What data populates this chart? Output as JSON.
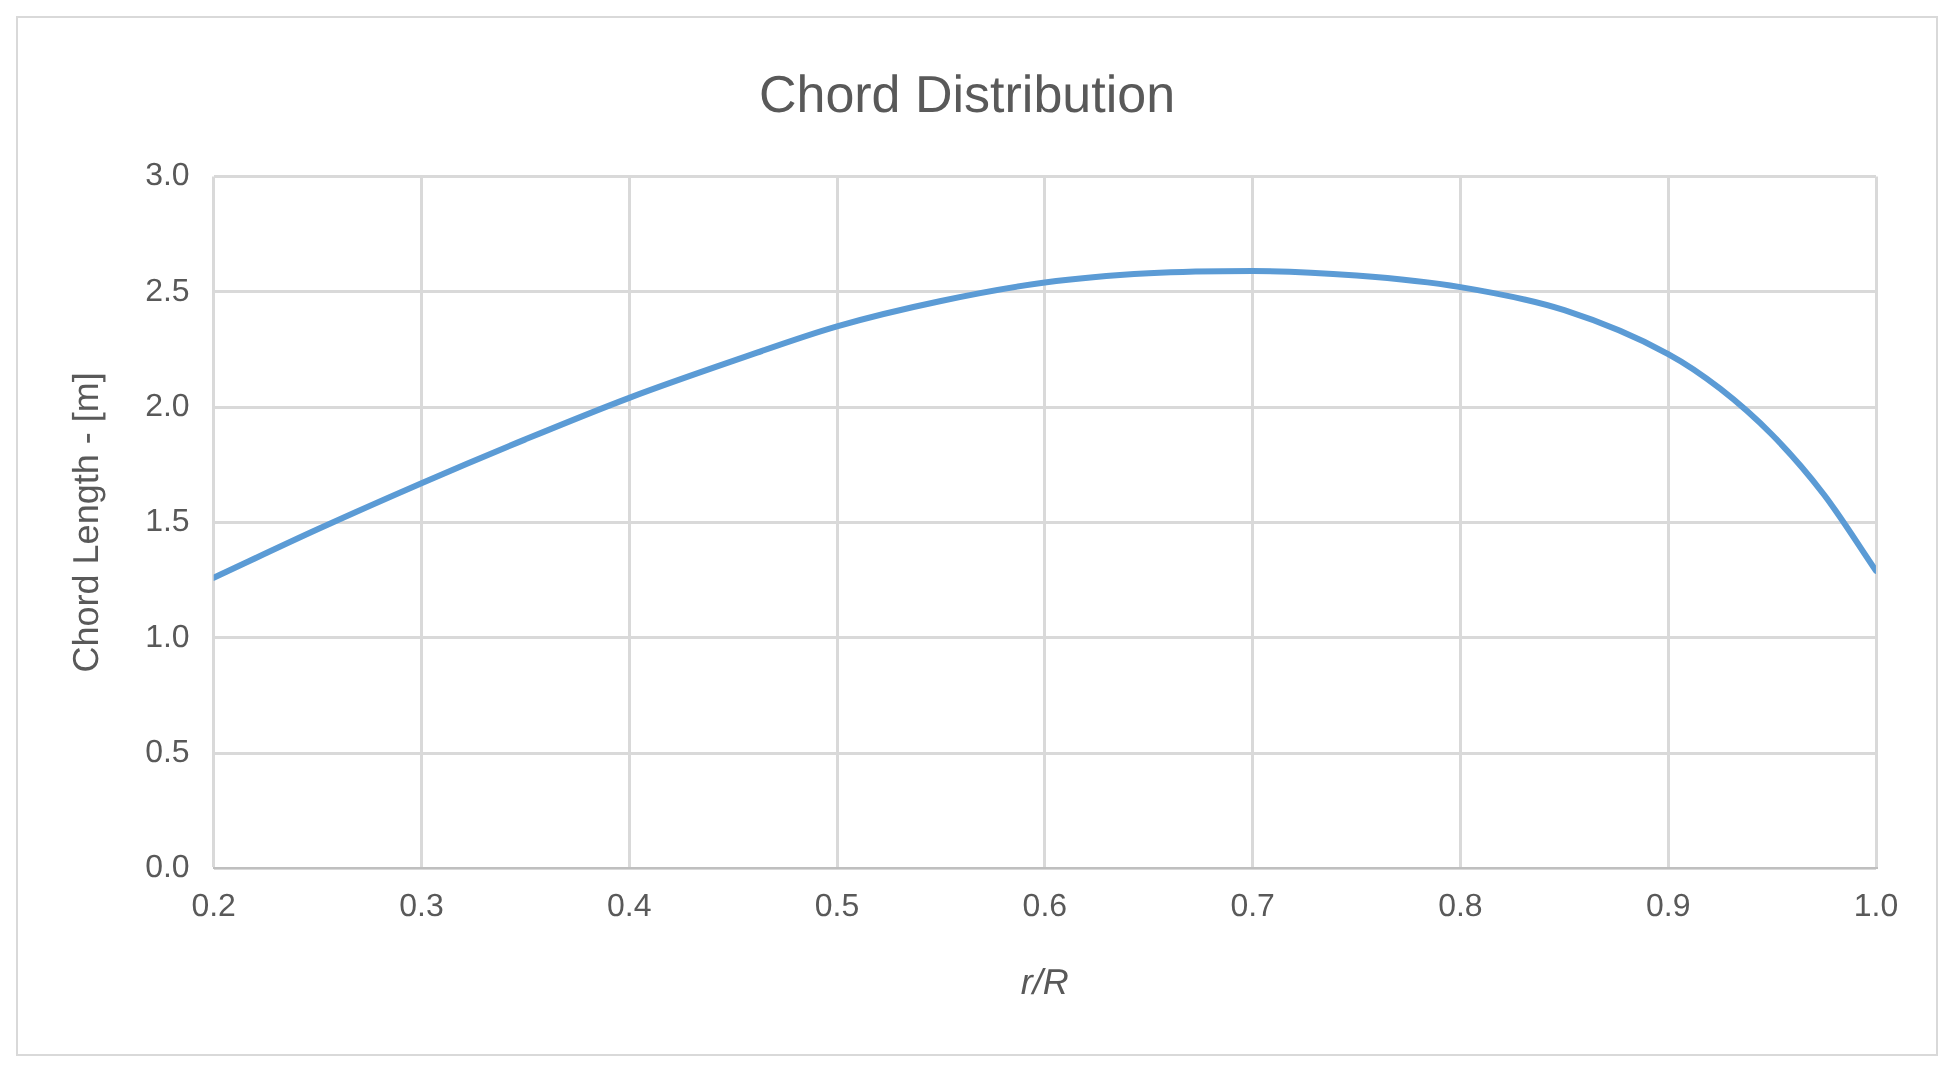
{
  "chart_data": {
    "type": "line",
    "title": "Chord Distribution",
    "xlabel": "r/R",
    "ylabel": "Chord Length - [m]",
    "x": [
      0.2,
      0.25,
      0.3,
      0.35,
      0.4,
      0.45,
      0.5,
      0.55,
      0.6,
      0.65,
      0.7,
      0.75,
      0.8,
      0.85,
      0.9,
      0.925,
      0.95,
      0.975,
      1.0
    ],
    "series": [
      {
        "color": "#5b9bd5",
        "values": [
          1.26,
          1.47,
          1.67,
          1.86,
          2.04,
          2.2,
          2.35,
          2.46,
          2.54,
          2.58,
          2.59,
          2.57,
          2.52,
          2.42,
          2.23,
          2.08,
          1.88,
          1.62,
          1.29
        ]
      }
    ],
    "xlim": [
      0.2,
      1.0
    ],
    "xticks": [
      0.2,
      0.3,
      0.4,
      0.5,
      0.6,
      0.7,
      0.8,
      0.9,
      {
        "value": 1,
        "label": "1.0"
      }
    ],
    "ylim": [
      0,
      3
    ],
    "yticks": [
      {
        "value": 0,
        "label": "0.0"
      },
      0.5,
      {
        "value": 1,
        "label": "1.0"
      },
      1.5,
      {
        "value": 2,
        "label": "2.0"
      },
      2.5,
      {
        "value": 3,
        "label": "3.0"
      }
    ],
    "grid": true,
    "legend": false,
    "marker": "none",
    "line_style": "solid"
  }
}
